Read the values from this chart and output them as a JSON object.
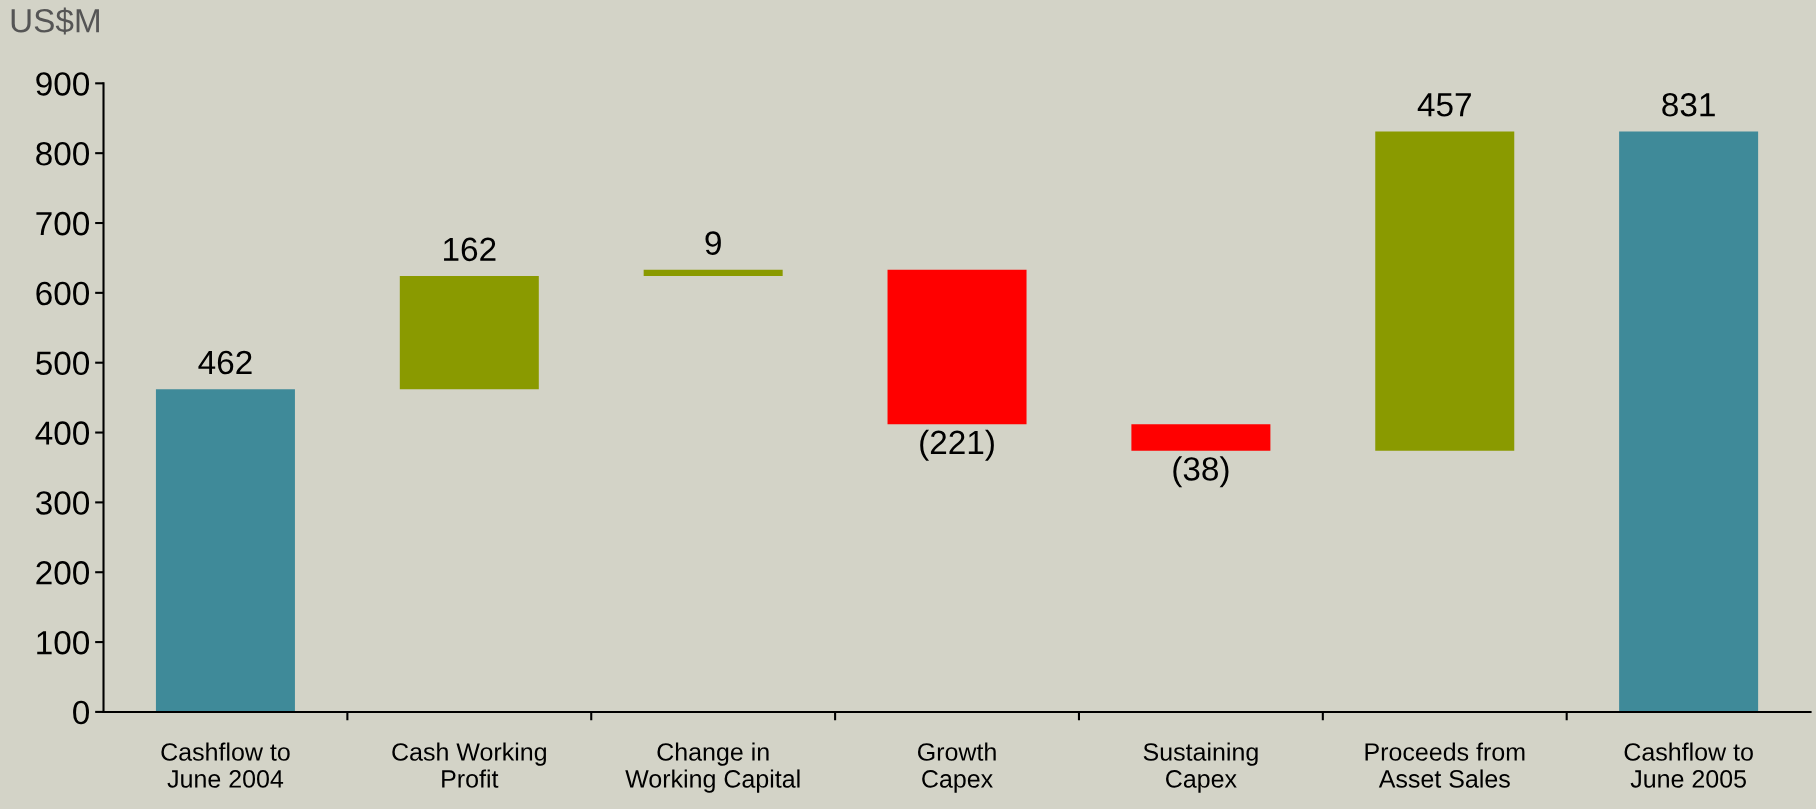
{
  "chart_data": {
    "type": "bar",
    "ylabel": "US$M",
    "categories": [
      "Cashflow to\nJune 2004",
      "Cash Working\nProfit",
      "Change in\nWorking Capital",
      "Growth\nCapex",
      "Sustaining\nCapex",
      "Proceeds from\nAsset Sales",
      "Cashflow to\nJune 2005"
    ],
    "values": [
      462,
      162,
      9,
      -221,
      -38,
      457,
      831
    ],
    "base": [
      0,
      462,
      624,
      633,
      412,
      374,
      0
    ],
    "colors": [
      "#3f8a99",
      "#8a9a00",
      "#8a9a00",
      "#ff0000",
      "#ff0000",
      "#8a9a00",
      "#3f8a99"
    ],
    "value_labels": [
      "462",
      "162",
      "9",
      "(221)",
      "(38)",
      "457",
      "831"
    ],
    "ylim": [
      0,
      900
    ],
    "yticks": [
      0,
      100,
      200,
      300,
      400,
      500,
      600,
      700,
      800,
      900
    ],
    "grid": false,
    "legend": false
  }
}
